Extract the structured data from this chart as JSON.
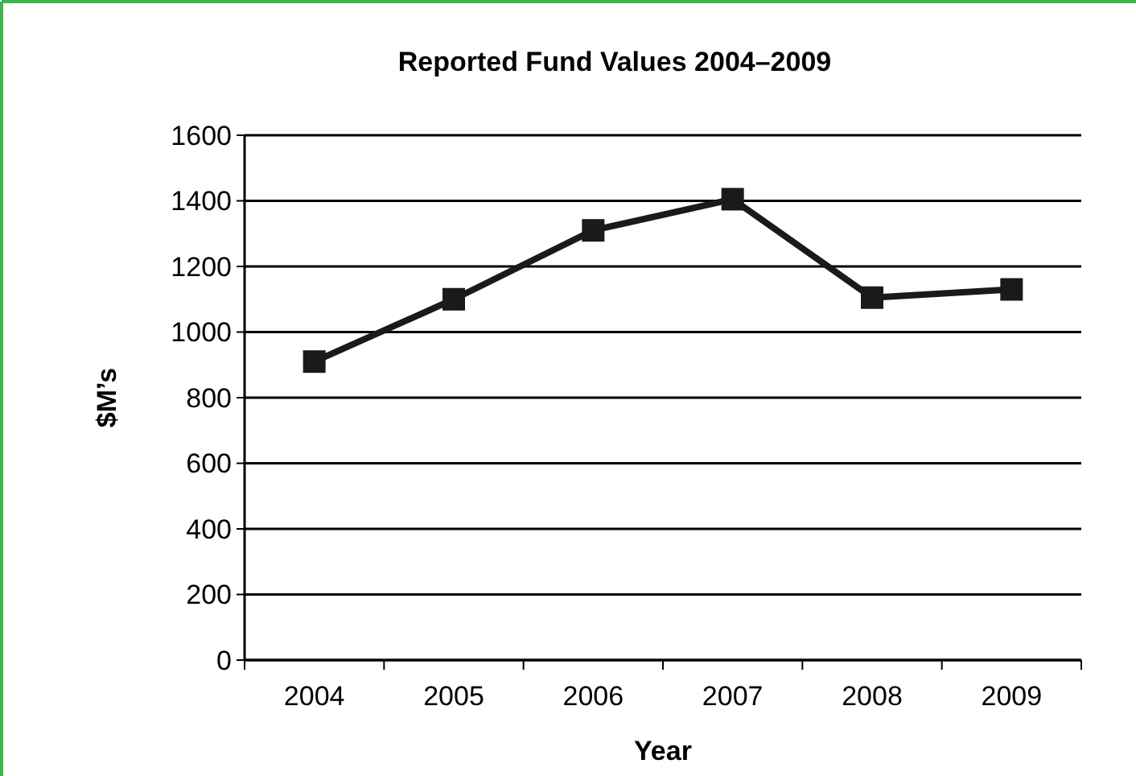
{
  "chart_data": {
    "type": "line",
    "title": "Reported Fund Values 2004–2009",
    "xlabel": "Year",
    "ylabel": "$M’s",
    "categories": [
      "2004",
      "2005",
      "2006",
      "2007",
      "2008",
      "2009"
    ],
    "series": [
      {
        "color": "#1a1a1a",
        "values": [
          910,
          1100,
          1310,
          1405,
          1105,
          1130
        ]
      }
    ],
    "ylim": [
      0,
      1600
    ],
    "yticks": [
      0,
      200,
      400,
      600,
      800,
      1000,
      1200,
      1400,
      1600
    ],
    "grid": "y",
    "marker": "square",
    "line_style": "solid"
  }
}
